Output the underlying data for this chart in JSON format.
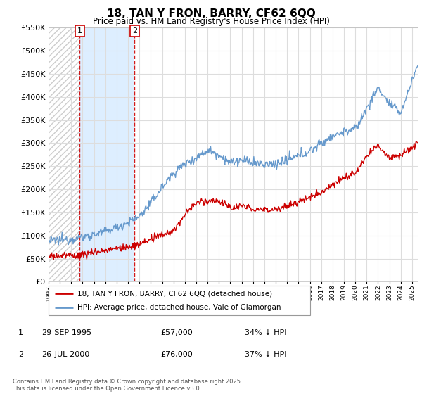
{
  "title": "18, TAN Y FRON, BARRY, CF62 6QQ",
  "subtitle": "Price paid vs. HM Land Registry's House Price Index (HPI)",
  "ylim": [
    0,
    550000
  ],
  "yticks": [
    0,
    50000,
    100000,
    150000,
    200000,
    250000,
    300000,
    350000,
    400000,
    450000,
    500000,
    550000
  ],
  "background_color": "#ffffff",
  "plot_bg_color": "#ffffff",
  "grid_color": "#dddddd",
  "sale1_x": 1995.75,
  "sale1_price": 57000,
  "sale2_x": 2000.58,
  "sale2_price": 76000,
  "red_line_color": "#cc0000",
  "blue_line_color": "#6699cc",
  "blue_fill_color": "#ddeeff",
  "hatch_color": "#cccccc",
  "dashed_color": "#cc0000",
  "annotation_box_color": "#cc0000",
  "legend_entry1": "18, TAN Y FRON, BARRY, CF62 6QQ (detached house)",
  "legend_entry2": "HPI: Average price, detached house, Vale of Glamorgan",
  "footer": "Contains HM Land Registry data © Crown copyright and database right 2025.\nThis data is licensed under the Open Government Licence v3.0.",
  "xstart_year": 1993,
  "xend_year": 2025.5
}
